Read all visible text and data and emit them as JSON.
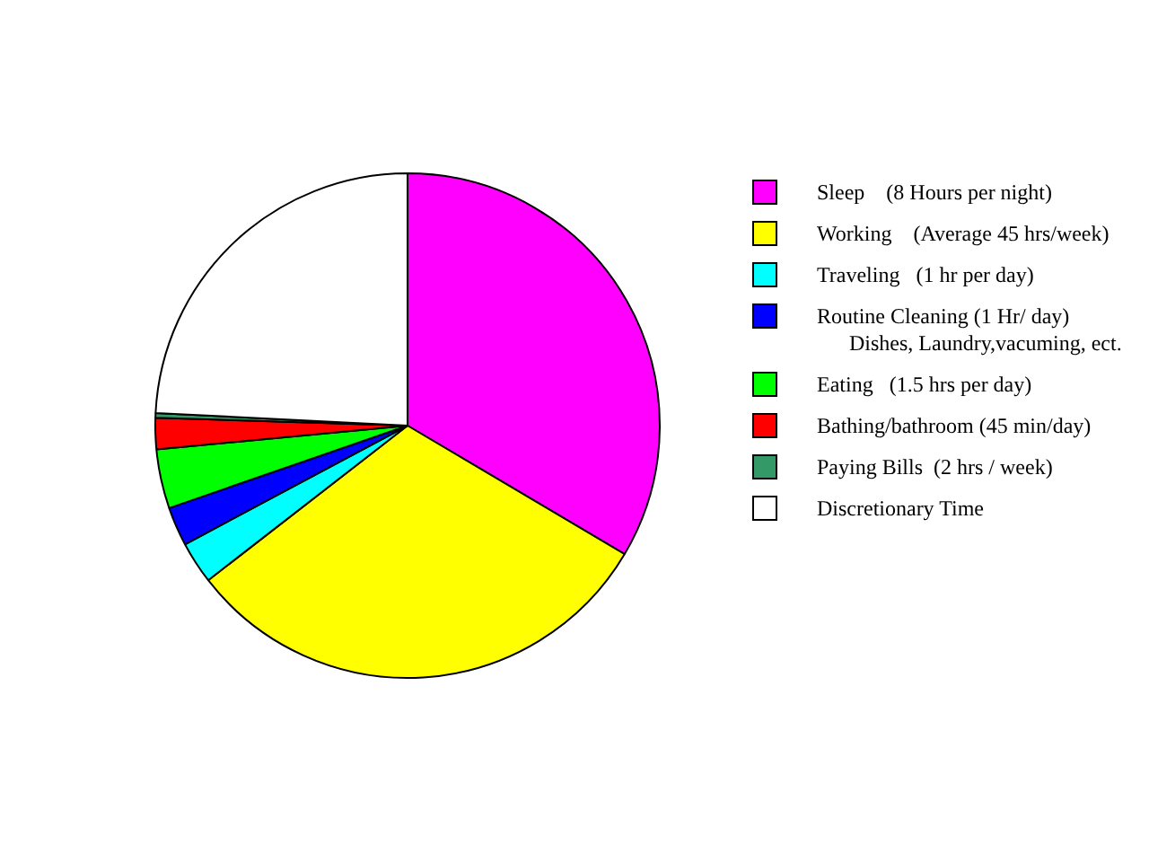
{
  "chart_data": {
    "type": "pie",
    "categories": [
      "Sleep    (8 Hours per night)",
      "Working    (Average 45 hrs/week)",
      "Traveling   (1 hr per day)",
      "Routine Cleaning (1 Hr/ day)\n      Dishes, Laundry,vacuming, ect.",
      "Eating   (1.5 hrs per day)",
      "Bathing/bathroom (45 min/day)",
      "Paying Bills  (2 hrs / week)",
      "Discretionary Time"
    ],
    "values": [
      33.5,
      31,
      2.7,
      2.5,
      3.8,
      2,
      0.3,
      24.2
    ],
    "colors": [
      "#ff00ff",
      "#ffff00",
      "#00ffff",
      "#0000ff",
      "#00ff00",
      "#ff0000",
      "#339966",
      "#ffffff"
    ],
    "legend": "right"
  }
}
